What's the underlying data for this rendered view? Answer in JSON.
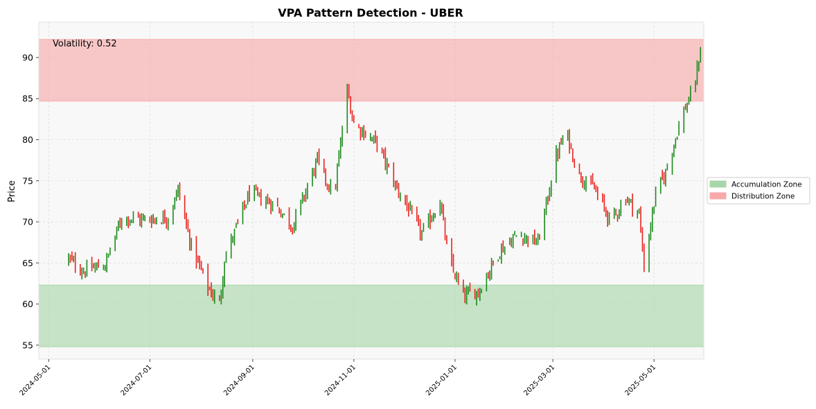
{
  "chart_data": {
    "type": "bar",
    "title": "VPA Pattern Detection - UBER",
    "xlabel": "",
    "ylabel": "Price",
    "ylim": [
      53.3,
      94.3
    ],
    "yticks": [
      55,
      60,
      65,
      70,
      75,
      80,
      85,
      90
    ],
    "xlim": [
      "2024-04-25",
      "2025-05-31"
    ],
    "xticks": [
      "2024-05-01",
      "2024-07-01",
      "2024-09-01",
      "2024-11-01",
      "2025-01-01",
      "2025-03-01",
      "2025-05-01"
    ],
    "grid": true,
    "annotation": "Volatility: 0.52",
    "zones": [
      {
        "name": "Accumulation Zone",
        "low": 54.8,
        "high": 62.3,
        "color": "#a9d6a9"
      },
      {
        "name": "Distribution Zone",
        "low": 84.7,
        "high": 92.2,
        "color": "#f7a9a9"
      }
    ],
    "legend": {
      "position": "right",
      "entries": [
        "Accumulation Zone",
        "Distribution Zone"
      ]
    },
    "colors": {
      "up": "#1a8a1a",
      "down": "#e8221c"
    },
    "anchors": [
      [
        "2024-05-13",
        65.5
      ],
      [
        "2024-05-22",
        64.0
      ],
      [
        "2024-06-04",
        64.8
      ],
      [
        "2024-06-14",
        70.5
      ],
      [
        "2024-06-28",
        70.3
      ],
      [
        "2024-07-12",
        70.5
      ],
      [
        "2024-07-18",
        74.0
      ],
      [
        "2024-07-26",
        67.0
      ],
      [
        "2024-08-05",
        62.0
      ],
      [
        "2024-08-12",
        60.0
      ],
      [
        "2024-08-15",
        65.5
      ],
      [
        "2024-08-30",
        73.5
      ],
      [
        "2024-09-15",
        72.0
      ],
      [
        "2024-09-25",
        69.5
      ],
      [
        "2024-10-10",
        77.5
      ],
      [
        "2024-10-20",
        73.0
      ],
      [
        "2024-10-28",
        86.0
      ],
      [
        "2024-11-01",
        82.0
      ],
      [
        "2024-11-15",
        79.5
      ],
      [
        "2024-11-26",
        74.5
      ],
      [
        "2024-12-12",
        68.5
      ],
      [
        "2024-12-23",
        72.5
      ],
      [
        "2024-12-28",
        65.5
      ],
      [
        "2025-01-06",
        61.0
      ],
      [
        "2025-01-15",
        61.5
      ],
      [
        "2025-01-28",
        66.5
      ],
      [
        "2025-02-08",
        68.5
      ],
      [
        "2025-02-20",
        67.5
      ],
      [
        "2025-02-26",
        73.0
      ],
      [
        "2025-03-02",
        77.5
      ],
      [
        "2025-03-09",
        81.0
      ],
      [
        "2025-03-16",
        76.0
      ],
      [
        "2025-03-26",
        74.0
      ],
      [
        "2025-04-05",
        70.0
      ],
      [
        "2025-04-14",
        73.0
      ],
      [
        "2025-04-22",
        71.0
      ],
      [
        "2025-04-25",
        64.5
      ],
      [
        "2025-05-02",
        73.5
      ],
      [
        "2025-05-08",
        76.0
      ],
      [
        "2025-05-15",
        81.0
      ],
      [
        "2025-05-20",
        84.0
      ],
      [
        "2025-05-25",
        86.0
      ],
      [
        "2025-05-29",
        91.0
      ]
    ]
  }
}
